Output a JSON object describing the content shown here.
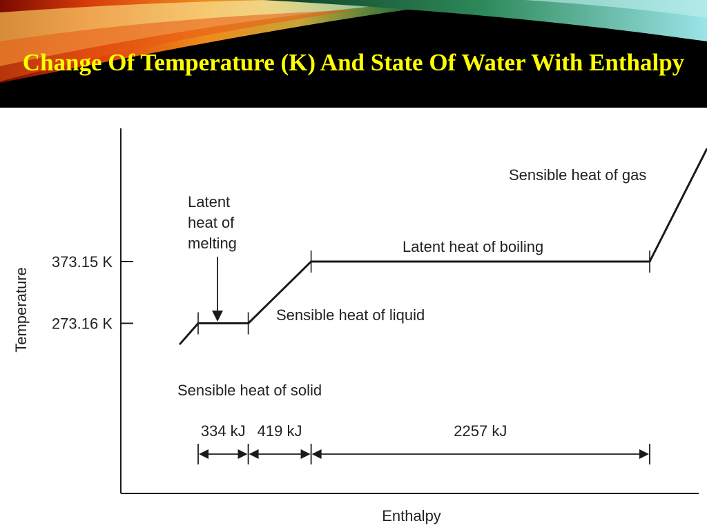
{
  "slide": {
    "title": "Change Of Temperature (K) And State Of Water With Enthalpy"
  },
  "colors": {
    "title": "#ffff00",
    "header_background": "#000000",
    "chart_background": "#ffffff",
    "line": "#1a1a1a"
  },
  "chart_data": {
    "type": "line",
    "title": "",
    "xlabel": "Enthalpy",
    "ylabel": "Temperature",
    "grid": false,
    "legend": "none",
    "x_unit": "kJ",
    "y_unit": "K",
    "y_ticks": [
      {
        "value": 373.15,
        "label": "373.15 K"
      },
      {
        "value": 273.16,
        "label": "273.16 K"
      }
    ],
    "segments": [
      {
        "name": "solid",
        "label": "Sensible heat of solid",
        "x": [
          -120,
          0
        ],
        "y": [
          240,
          273.16
        ]
      },
      {
        "name": "melting",
        "label": "Latent heat of melting",
        "x": [
          0,
          334
        ],
        "y": [
          273.16,
          273.16
        ]
      },
      {
        "name": "liquid",
        "label": "Sensible heat of liquid",
        "x": [
          334,
          753
        ],
        "y": [
          273.16,
          373.15
        ]
      },
      {
        "name": "boiling",
        "label": "Latent heat of boiling",
        "x": [
          753,
          3010
        ],
        "y": [
          373.15,
          373.15
        ]
      },
      {
        "name": "gas",
        "label": "Sensible heat of gas",
        "x": [
          3010,
          3390
        ],
        "y": [
          373.15,
          555
        ]
      }
    ],
    "intervals": [
      {
        "label": "334 kJ",
        "from": 0,
        "to": 334
      },
      {
        "label": "419 kJ",
        "from": 334,
        "to": 753
      },
      {
        "label": "2257 kJ",
        "from": 753,
        "to": 3010
      }
    ]
  }
}
